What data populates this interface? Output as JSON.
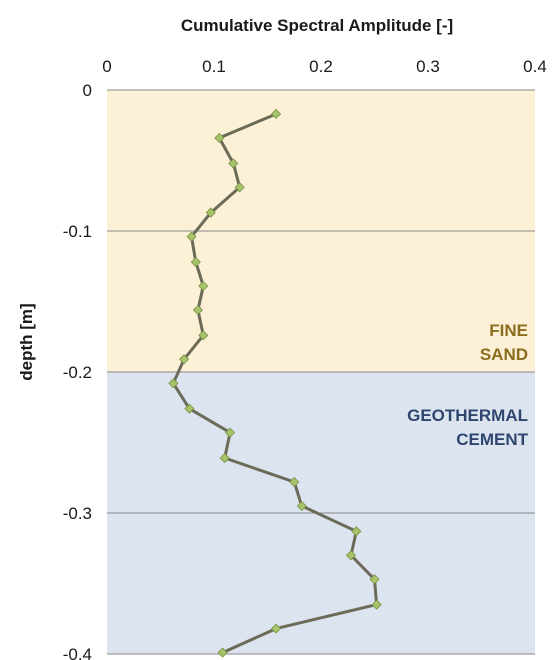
{
  "chart_data": {
    "type": "line",
    "title": "Cumulative Spectral Amplitude [-]",
    "xlabel": "Cumulative Spectral Amplitude [-]",
    "ylabel": "depth [m]",
    "xlim": [
      0,
      0.4
    ],
    "ylim": [
      -0.4,
      0
    ],
    "x_ticks": [
      0,
      0.1,
      0.2,
      0.3,
      0.4
    ],
    "x_tick_labels": [
      "0",
      "0.1",
      "0.2",
      "0.3",
      "0.4"
    ],
    "y_ticks": [
      0,
      -0.1,
      -0.2,
      -0.3,
      -0.4
    ],
    "y_tick_labels": [
      "0",
      "-0.1",
      "-0.2",
      "-0.3",
      "-0.4"
    ],
    "x_axis_position": "top",
    "grid": "horizontal",
    "series": [
      {
        "line_color": "#6b6b57",
        "marker_color": "#a6c46a",
        "marker": "diamond",
        "x": [
          0.158,
          0.105,
          0.118,
          0.124,
          0.097,
          0.079,
          0.083,
          0.09,
          0.085,
          0.09,
          0.072,
          0.062,
          0.077,
          0.115,
          0.11,
          0.175,
          0.182,
          0.233,
          0.228,
          0.25,
          0.252,
          0.158,
          0.108
        ],
        "y": [
          -0.017,
          -0.034,
          -0.052,
          -0.069,
          -0.087,
          -0.104,
          -0.122,
          -0.139,
          -0.156,
          -0.174,
          -0.191,
          -0.208,
          -0.226,
          -0.243,
          -0.261,
          -0.278,
          -0.295,
          -0.313,
          -0.33,
          -0.347,
          -0.365,
          -0.382,
          -0.399
        ]
      }
    ],
    "zones": [
      {
        "label_lines": [
          "FINE",
          "SAND"
        ],
        "from": 0,
        "to": -0.2,
        "fill": "#fcf0d6",
        "text_color": "#8a6d1e"
      },
      {
        "label_lines": [
          "GEOTHERMAL",
          "CEMENT"
        ],
        "from": -0.2,
        "to": -0.4,
        "fill": "#dce4f0",
        "text_color": "#2f4670"
      }
    ]
  }
}
